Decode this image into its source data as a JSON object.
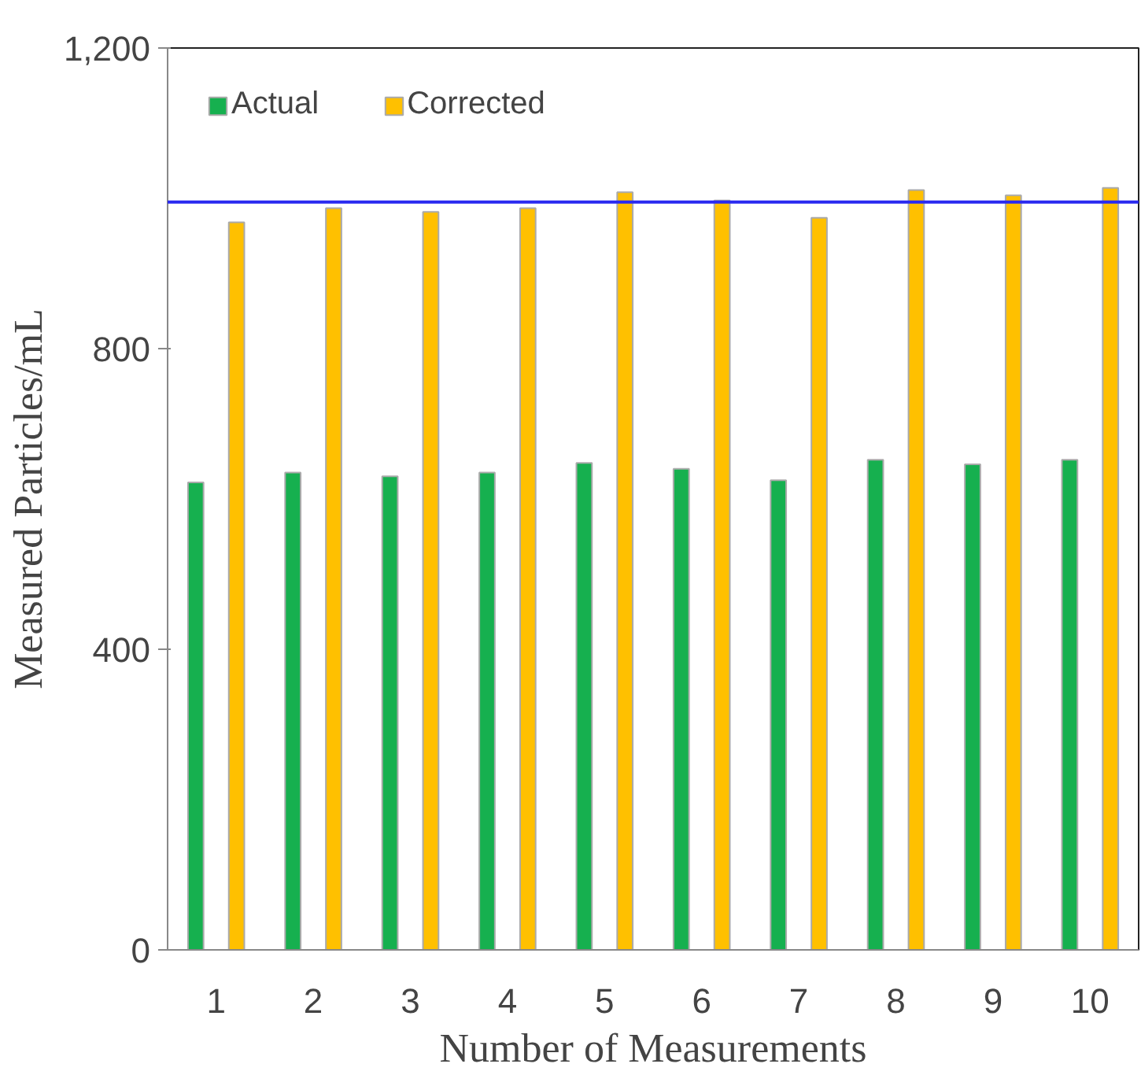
{
  "chart_data": {
    "type": "bar",
    "xlabel": "Number of Measurements",
    "ylabel": "Measured Particles/mL",
    "categories": [
      "1",
      "2",
      "3",
      "4",
      "5",
      "6",
      "7",
      "8",
      "9",
      "10"
    ],
    "series": [
      {
        "name": "Actual",
        "color": "#16b04f",
        "values": [
          622,
          635,
          630,
          635,
          648,
          640,
          625,
          652,
          646,
          652
        ]
      },
      {
        "name": "Corrected",
        "color": "#ffc000",
        "values": [
          968,
          987,
          982,
          987,
          1008,
          997,
          974,
          1011,
          1004,
          1014
        ]
      }
    ],
    "ylim": [
      0,
      1200
    ],
    "yticks": [
      0,
      400,
      800,
      {
        "value": 1200,
        "label": "1,200"
      }
    ],
    "ref_lines": [
      {
        "axis": "y",
        "value": 995,
        "color": "#2a2af0"
      }
    ],
    "grid": false,
    "legend": "top left"
  }
}
